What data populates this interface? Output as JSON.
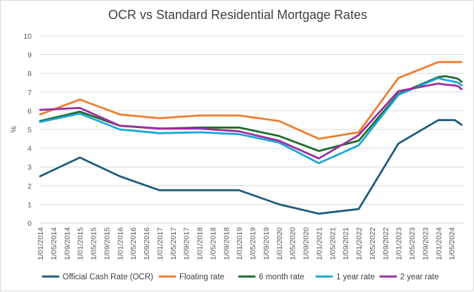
{
  "chart_data": {
    "type": "line",
    "title": "OCR vs Standard Residential Mortgage Rates",
    "xlabel": "",
    "ylabel": "%",
    "ylim": [
      0,
      10
    ],
    "yticks": [
      0,
      1,
      2,
      3,
      4,
      5,
      6,
      7,
      8,
      9,
      10
    ],
    "x_range_months": [
      0,
      128
    ],
    "x_tick_labels": [
      "1/01/2014",
      "1/05/2014",
      "1/09/2014",
      "1/01/2015",
      "1/05/2015",
      "1/09/2015",
      "1/01/2016",
      "1/05/2016",
      "1/09/2016",
      "1/01/2017",
      "1/05/2017",
      "1/09/2017",
      "1/01/2018",
      "1/05/2018",
      "1/09/2018",
      "1/01/2019",
      "1/05/2019",
      "1/09/2019",
      "1/01/2020",
      "1/05/2020",
      "1/09/2020",
      "1/01/2021",
      "1/05/2021",
      "1/09/2021",
      "1/01/2022",
      "1/05/2022",
      "1/09/2022",
      "1/01/2023",
      "1/05/2023",
      "1/09/2023",
      "1/01/2024",
      "1/05/2024"
    ],
    "x_tick_months": [
      0,
      4,
      8,
      12,
      16,
      20,
      24,
      28,
      32,
      36,
      40,
      44,
      48,
      52,
      56,
      60,
      64,
      68,
      72,
      76,
      80,
      84,
      88,
      92,
      96,
      100,
      104,
      108,
      112,
      116,
      120,
      124
    ],
    "gridlines": true,
    "legend_position": "bottom",
    "series": [
      {
        "name": "Official Cash Rate (OCR)",
        "color": "#1f5c7a",
        "x": [
          0,
          12,
          24,
          36,
          48,
          60,
          72,
          84,
          96,
          108,
          120,
          125,
          127
        ],
        "values": [
          2.5,
          3.5,
          2.5,
          1.75,
          1.75,
          1.75,
          1.0,
          0.5,
          0.75,
          4.25,
          5.5,
          5.5,
          5.25
        ]
      },
      {
        "name": "Floating rate",
        "color": "#ed7d31",
        "x": [
          0,
          12,
          24,
          36,
          48,
          60,
          72,
          84,
          96,
          108,
          120,
          125,
          127
        ],
        "values": [
          5.8,
          6.6,
          5.8,
          5.6,
          5.75,
          5.75,
          5.45,
          4.5,
          4.85,
          7.75,
          8.6,
          8.6,
          8.6
        ]
      },
      {
        "name": "6 month rate",
        "color": "#1e6b2e",
        "x": [
          0,
          12,
          24,
          36,
          48,
          60,
          72,
          84,
          96,
          108,
          120,
          122,
          125,
          126,
          127
        ],
        "values": [
          5.45,
          5.95,
          5.2,
          5.05,
          5.1,
          5.1,
          4.65,
          3.85,
          4.4,
          6.9,
          7.8,
          7.85,
          7.75,
          7.7,
          7.55
        ]
      },
      {
        "name": "1 year rate",
        "color": "#1aa6d9",
        "x": [
          0,
          12,
          24,
          36,
          48,
          60,
          72,
          84,
          96,
          108,
          120,
          122,
          125,
          126,
          127
        ],
        "values": [
          5.4,
          5.85,
          5.0,
          4.8,
          4.85,
          4.75,
          4.3,
          3.2,
          4.15,
          6.85,
          7.75,
          7.65,
          7.55,
          7.5,
          7.35
        ]
      },
      {
        "name": "2 year rate",
        "color": "#9b2f9e",
        "x": [
          0,
          12,
          24,
          36,
          48,
          60,
          72,
          84,
          96,
          108,
          120,
          122,
          125,
          126,
          127
        ],
        "values": [
          6.05,
          6.15,
          5.2,
          5.05,
          5.05,
          4.9,
          4.4,
          3.45,
          4.7,
          7.05,
          7.45,
          7.4,
          7.35,
          7.3,
          7.15
        ]
      }
    ]
  }
}
